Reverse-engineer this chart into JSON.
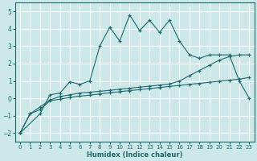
{
  "xlabel": "Humidex (Indice chaleur)",
  "bg_color": "#cce8e8",
  "grid_color": "#ffffff",
  "line_color": "#1a6b6b",
  "xlim": [
    -0.5,
    23.5
  ],
  "ylim": [
    -2.5,
    5.5
  ],
  "xticks": [
    0,
    1,
    2,
    3,
    4,
    5,
    6,
    7,
    8,
    9,
    10,
    11,
    12,
    13,
    14,
    15,
    16,
    17,
    18,
    19,
    20,
    21,
    22,
    23
  ],
  "yticks": [
    -2,
    -1,
    0,
    1,
    2,
    3,
    4,
    5
  ],
  "line1_x": [
    0,
    1,
    2,
    3,
    4,
    5,
    6,
    7,
    8,
    9,
    10,
    11,
    12,
    13,
    14,
    15,
    16,
    17,
    18,
    19,
    20,
    21,
    22,
    23
  ],
  "line1_y": [
    -2.0,
    -0.9,
    -0.65,
    -0.15,
    -0.05,
    0.05,
    0.12,
    0.18,
    0.25,
    0.32,
    0.38,
    0.44,
    0.5,
    0.56,
    0.62,
    0.68,
    0.74,
    0.8,
    0.86,
    0.92,
    0.98,
    1.04,
    1.1,
    1.2
  ],
  "line2_x": [
    0,
    1,
    2,
    3,
    4,
    5,
    6,
    7,
    8,
    9,
    10,
    11,
    12,
    13,
    14,
    15,
    16,
    17,
    18,
    19,
    20,
    21,
    22,
    23
  ],
  "line2_y": [
    -2.0,
    -0.9,
    -0.5,
    -0.1,
    0.1,
    0.2,
    0.3,
    0.35,
    0.4,
    0.46,
    0.52,
    0.58,
    0.64,
    0.7,
    0.76,
    0.82,
    1.0,
    1.3,
    1.6,
    1.9,
    2.2,
    2.4,
    2.5,
    2.5
  ],
  "line3_x": [
    0,
    2,
    3,
    4,
    5,
    6,
    7,
    8,
    9,
    10,
    11,
    12,
    13,
    14,
    15,
    16,
    17,
    18,
    19,
    20,
    21,
    22,
    23
  ],
  "line3_y": [
    -2.0,
    -0.9,
    0.2,
    0.3,
    0.95,
    0.8,
    1.0,
    3.0,
    4.1,
    3.3,
    4.8,
    3.9,
    4.5,
    3.8,
    4.5,
    3.3,
    2.5,
    2.3,
    2.5,
    2.5,
    2.5,
    1.0,
    0.0
  ]
}
